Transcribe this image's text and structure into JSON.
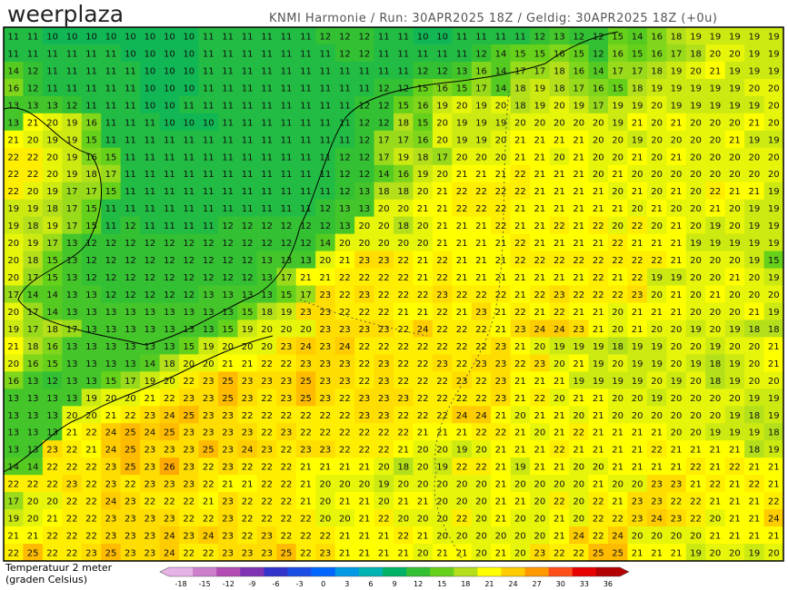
{
  "header": {
    "logo": "weerplaza",
    "info": "KNMI Harmonie / Run: 30APR2025 18Z / Geldig: 30APR2025 18Z (+0u)"
  },
  "map": {
    "rows": [
      [
        11,
        11,
        10,
        10,
        10,
        10,
        10,
        10,
        10,
        10,
        11,
        11,
        11,
        11,
        11,
        11,
        12,
        12,
        12,
        11,
        11,
        10,
        10,
        11,
        11,
        11,
        11,
        12,
        13,
        12,
        12,
        15,
        14,
        16,
        18,
        19,
        19,
        19,
        19,
        19
      ],
      [
        11,
        11,
        11,
        11,
        11,
        11,
        10,
        10,
        10,
        10,
        11,
        11,
        11,
        11,
        11,
        11,
        11,
        12,
        12,
        11,
        11,
        11,
        11,
        11,
        12,
        14,
        15,
        15,
        16,
        15,
        12,
        16,
        15,
        16,
        17,
        18,
        20,
        20,
        19,
        19
      ],
      [
        14,
        12,
        11,
        11,
        11,
        11,
        11,
        10,
        10,
        10,
        11,
        11,
        11,
        11,
        11,
        11,
        11,
        11,
        11,
        11,
        11,
        12,
        12,
        13,
        16,
        14,
        17,
        17,
        18,
        16,
        14,
        17,
        17,
        18,
        19,
        20,
        21,
        19,
        19,
        19
      ],
      [
        16,
        12,
        11,
        11,
        11,
        11,
        11,
        10,
        10,
        10,
        11,
        11,
        11,
        11,
        11,
        11,
        11,
        11,
        11,
        12,
        12,
        15,
        16,
        15,
        17,
        14,
        18,
        19,
        18,
        17,
        16,
        15,
        18,
        19,
        19,
        19,
        19,
        19,
        20,
        20
      ],
      [
        13,
        13,
        13,
        12,
        11,
        11,
        11,
        10,
        10,
        11,
        11,
        11,
        11,
        11,
        11,
        11,
        11,
        11,
        12,
        12,
        15,
        16,
        19,
        20,
        19,
        20,
        18,
        19,
        20,
        19,
        17,
        19,
        19,
        20,
        19,
        19,
        19,
        19,
        19,
        20
      ],
      [
        13,
        21,
        20,
        19,
        16,
        11,
        11,
        11,
        10,
        10,
        10,
        11,
        11,
        11,
        11,
        11,
        11,
        11,
        12,
        12,
        18,
        15,
        20,
        19,
        19,
        19,
        20,
        20,
        20,
        20,
        20,
        19,
        21,
        20,
        21,
        20,
        20,
        20,
        21,
        20
      ],
      [
        21,
        20,
        19,
        19,
        15,
        11,
        11,
        11,
        11,
        11,
        11,
        11,
        11,
        11,
        11,
        11,
        11,
        11,
        12,
        17,
        17,
        16,
        20,
        19,
        19,
        20,
        21,
        21,
        21,
        21,
        20,
        20,
        19,
        20,
        20,
        20,
        20,
        21,
        19,
        19
      ],
      [
        22,
        22,
        20,
        19,
        16,
        15,
        11,
        11,
        11,
        11,
        11,
        11,
        11,
        11,
        11,
        11,
        11,
        12,
        12,
        17,
        19,
        18,
        17,
        20,
        20,
        20,
        21,
        21,
        20,
        21,
        20,
        20,
        21,
        20,
        21,
        20,
        20,
        20,
        20,
        20
      ],
      [
        22,
        22,
        20,
        19,
        18,
        17,
        11,
        11,
        11,
        11,
        11,
        11,
        11,
        11,
        11,
        11,
        11,
        12,
        12,
        14,
        16,
        19,
        20,
        21,
        21,
        21,
        22,
        21,
        21,
        21,
        20,
        21,
        20,
        20,
        20,
        20,
        20,
        20,
        20,
        20
      ],
      [
        22,
        20,
        19,
        17,
        17,
        15,
        11,
        11,
        11,
        11,
        11,
        11,
        11,
        11,
        11,
        11,
        11,
        12,
        13,
        18,
        18,
        20,
        21,
        22,
        22,
        22,
        22,
        21,
        21,
        21,
        21,
        20,
        21,
        20,
        21,
        20,
        22,
        21,
        21,
        19
      ],
      [
        19,
        19,
        18,
        17,
        15,
        11,
        11,
        11,
        11,
        11,
        11,
        11,
        11,
        11,
        11,
        11,
        12,
        13,
        13,
        20,
        20,
        21,
        21,
        22,
        22,
        22,
        21,
        21,
        21,
        21,
        21,
        21,
        20,
        21,
        20,
        20,
        21,
        20,
        19,
        19
      ],
      [
        19,
        18,
        19,
        17,
        15,
        11,
        12,
        11,
        11,
        11,
        11,
        12,
        12,
        12,
        12,
        12,
        12,
        13,
        20,
        20,
        18,
        20,
        21,
        21,
        21,
        22,
        21,
        21,
        22,
        21,
        22,
        20,
        22,
        20,
        21,
        20,
        19,
        20,
        19,
        19
      ],
      [
        20,
        19,
        17,
        13,
        12,
        12,
        12,
        12,
        12,
        12,
        12,
        12,
        12,
        12,
        12,
        12,
        14,
        20,
        20,
        20,
        20,
        20,
        21,
        21,
        21,
        21,
        22,
        21,
        21,
        21,
        21,
        22,
        21,
        21,
        21,
        19,
        19,
        19,
        19,
        19
      ],
      [
        20,
        18,
        15,
        13,
        12,
        12,
        12,
        12,
        12,
        12,
        12,
        12,
        12,
        13,
        13,
        13,
        20,
        21,
        23,
        23,
        22,
        21,
        22,
        21,
        21,
        21,
        22,
        22,
        22,
        22,
        22,
        22,
        22,
        22,
        21,
        20,
        20,
        20,
        19,
        15
      ],
      [
        20,
        17,
        15,
        13,
        12,
        12,
        12,
        12,
        12,
        12,
        12,
        12,
        12,
        13,
        17,
        21,
        21,
        22,
        22,
        22,
        22,
        21,
        22,
        21,
        21,
        21,
        21,
        21,
        21,
        21,
        22,
        21,
        22,
        19,
        19,
        20,
        20,
        21,
        20,
        19
      ],
      [
        17,
        14,
        14,
        13,
        13,
        12,
        12,
        12,
        12,
        12,
        13,
        13,
        13,
        13,
        15,
        17,
        23,
        22,
        23,
        22,
        22,
        22,
        23,
        22,
        22,
        22,
        21,
        22,
        23,
        22,
        22,
        22,
        23,
        20,
        21,
        20,
        21,
        20,
        20,
        20
      ],
      [
        20,
        17,
        14,
        13,
        13,
        13,
        13,
        13,
        13,
        13,
        13,
        13,
        15,
        18,
        19,
        23,
        23,
        22,
        22,
        22,
        21,
        21,
        22,
        21,
        23,
        21,
        22,
        21,
        22,
        21,
        21,
        20,
        21,
        21,
        21,
        20,
        20,
        20,
        21,
        19
      ],
      [
        19,
        17,
        18,
        17,
        13,
        13,
        13,
        13,
        13,
        13,
        13,
        15,
        19,
        20,
        20,
        20,
        23,
        23,
        23,
        23,
        22,
        24,
        22,
        22,
        22,
        21,
        23,
        24,
        24,
        23,
        21,
        20,
        21,
        20,
        20,
        19,
        20,
        19,
        18,
        18
      ],
      [
        21,
        18,
        16,
        13,
        13,
        13,
        13,
        13,
        13,
        15,
        19,
        20,
        20,
        20,
        23,
        24,
        23,
        24,
        22,
        22,
        22,
        22,
        22,
        22,
        22,
        23,
        21,
        20,
        19,
        19,
        19,
        18,
        19,
        19,
        20,
        20,
        19,
        20,
        20,
        21
      ],
      [
        20,
        16,
        15,
        13,
        13,
        13,
        13,
        14,
        18,
        20,
        20,
        21,
        21,
        22,
        22,
        23,
        23,
        23,
        22,
        23,
        22,
        22,
        23,
        22,
        23,
        23,
        22,
        23,
        20,
        21,
        19,
        20,
        19,
        19,
        20,
        19,
        18,
        19,
        20,
        21
      ],
      [
        16,
        13,
        12,
        13,
        13,
        15,
        17,
        19,
        20,
        22,
        23,
        25,
        23,
        23,
        23,
        25,
        23,
        23,
        22,
        23,
        22,
        22,
        22,
        23,
        22,
        23,
        21,
        21,
        21,
        19,
        19,
        19,
        19,
        20,
        19,
        20,
        18,
        19,
        20,
        20
      ],
      [
        13,
        13,
        13,
        13,
        19,
        20,
        20,
        21,
        22,
        23,
        23,
        25,
        23,
        22,
        23,
        25,
        23,
        22,
        23,
        23,
        23,
        22,
        22,
        22,
        22,
        23,
        21,
        22,
        20,
        21,
        21,
        20,
        20,
        19,
        20,
        20,
        20,
        20,
        19,
        19
      ],
      [
        13,
        13,
        13,
        20,
        20,
        21,
        22,
        23,
        24,
        25,
        23,
        23,
        22,
        22,
        22,
        22,
        22,
        22,
        23,
        23,
        22,
        22,
        22,
        24,
        24,
        21,
        20,
        21,
        21,
        20,
        21,
        20,
        20,
        20,
        20,
        20,
        20,
        19,
        18,
        19
      ],
      [
        13,
        13,
        13,
        21,
        22,
        24,
        25,
        24,
        25,
        23,
        23,
        23,
        23,
        22,
        23,
        22,
        22,
        22,
        22,
        22,
        22,
        21,
        21,
        21,
        22,
        22,
        21,
        20,
        21,
        22,
        21,
        21,
        21,
        21,
        20,
        20,
        19,
        19,
        19,
        18
      ],
      [
        13,
        13,
        23,
        22,
        21,
        24,
        25,
        23,
        23,
        23,
        25,
        23,
        24,
        23,
        22,
        23,
        23,
        22,
        22,
        22,
        21,
        20,
        20,
        19,
        20,
        21,
        21,
        21,
        22,
        21,
        21,
        21,
        21,
        22,
        21,
        21,
        21,
        21,
        18,
        19
      ],
      [
        14,
        14,
        22,
        22,
        22,
        23,
        25,
        23,
        26,
        23,
        22,
        23,
        22,
        22,
        22,
        21,
        21,
        21,
        21,
        20,
        18,
        20,
        19,
        22,
        22,
        21,
        19,
        21,
        21,
        20,
        20,
        21,
        21,
        21,
        21,
        22,
        21,
        22,
        21,
        21
      ],
      [
        22,
        22,
        22,
        23,
        22,
        23,
        22,
        23,
        23,
        23,
        22,
        21,
        21,
        22,
        22,
        21,
        20,
        20,
        20,
        19,
        20,
        20,
        20,
        20,
        20,
        21,
        20,
        20,
        20,
        20,
        21,
        20,
        20,
        23,
        23,
        21,
        22,
        21,
        22,
        21
      ],
      [
        17,
        20,
        20,
        22,
        22,
        24,
        23,
        22,
        22,
        22,
        21,
        23,
        22,
        22,
        22,
        21,
        20,
        21,
        21,
        20,
        21,
        21,
        20,
        20,
        20,
        21,
        21,
        20,
        22,
        20,
        22,
        21,
        23,
        23,
        22,
        22,
        21,
        21,
        21,
        22
      ],
      [
        19,
        20,
        21,
        22,
        22,
        23,
        23,
        23,
        23,
        22,
        22,
        23,
        22,
        22,
        22,
        22,
        20,
        20,
        21,
        22,
        20,
        20,
        20,
        22,
        20,
        21,
        20,
        20,
        21,
        20,
        22,
        22,
        23,
        24,
        23,
        22,
        20,
        21,
        21,
        24
      ],
      [
        21,
        21,
        22,
        22,
        22,
        23,
        23,
        23,
        24,
        23,
        24,
        23,
        22,
        23,
        22,
        22,
        22,
        21,
        21,
        21,
        22,
        21,
        20,
        20,
        20,
        20,
        20,
        20,
        21,
        24,
        22,
        24,
        20,
        20,
        20,
        20,
        21,
        21,
        21,
        21
      ],
      [
        22,
        25,
        22,
        22,
        23,
        25,
        23,
        23,
        24,
        22,
        22,
        23,
        23,
        23,
        25,
        22,
        23,
        21,
        21,
        21,
        21,
        20,
        21,
        21,
        20,
        21,
        20,
        23,
        22,
        22,
        25,
        25,
        21,
        21,
        21,
        19,
        20,
        20,
        19,
        20
      ]
    ]
  },
  "legend": {
    "title": [
      "Temperatuur 2 meter",
      "(graden Celsius)"
    ],
    "ticks": [
      -18,
      -15,
      -12,
      -9,
      -6,
      -3,
      0,
      3,
      6,
      9,
      12,
      15,
      18,
      21,
      24,
      27,
      30,
      33,
      36
    ],
    "colors": [
      "#e6b3e6",
      "#cc80cc",
      "#b34db3",
      "#8033b3",
      "#3333cc",
      "#1a4de6",
      "#0066ff",
      "#0099e6",
      "#00b3b3",
      "#00b366",
      "#33c033",
      "#66d11a",
      "#b3e01a",
      "#ffff00",
      "#ffcc00",
      "#ff9900",
      "#ff4d1a",
      "#e60000",
      "#b30000"
    ]
  }
}
